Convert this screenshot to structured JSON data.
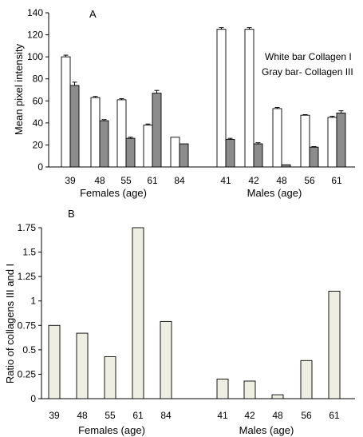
{
  "chart_data": [
    {
      "panel_label": "A",
      "type": "bar",
      "ylabel": "Mean pixel intensity",
      "ylim": [
        0,
        140
      ],
      "yticks": [
        0,
        20,
        40,
        60,
        80,
        100,
        120,
        140
      ],
      "grid": false,
      "annotations": [
        "White bar Collagen I",
        "Gray bar- Collagen III"
      ],
      "groups": [
        {
          "label": "Females (age)",
          "categories": [
            "39",
            "48",
            "55",
            "61",
            "84"
          ]
        },
        {
          "label": "Males (age)",
          "categories": [
            "41",
            "42",
            "48",
            "56",
            "61"
          ]
        }
      ],
      "series": [
        {
          "values": [
            100,
            63,
            61,
            38,
            27,
            125,
            125,
            53,
            47,
            45
          ],
          "errors": [
            1.5,
            1,
            1,
            1,
            0,
            1.5,
            1.5,
            1,
            0.5,
            1
          ],
          "color": "#ffffff"
        },
        {
          "values": [
            74,
            42,
            26,
            67,
            21,
            25,
            21,
            2,
            18,
            49
          ],
          "errors": [
            3,
            1,
            1,
            2.5,
            0,
            1,
            1,
            0,
            0.5,
            2
          ],
          "color": "#8c8c8c"
        }
      ]
    },
    {
      "panel_label": "B",
      "type": "bar",
      "ylabel": "Ratio of collagens III and I",
      "ylim": [
        0,
        1.75
      ],
      "yticks": [
        "0",
        "0.25",
        "0.5",
        "0.75",
        "1",
        "1.25",
        "1.5",
        "1.75"
      ],
      "grid": false,
      "groups": [
        {
          "label": "Females (age)",
          "categories": [
            "39",
            "48",
            "55",
            "61",
            "84"
          ]
        },
        {
          "label": "Males (age)",
          "categories": [
            "41",
            "42",
            "48",
            "56",
            "61"
          ]
        }
      ],
      "series": [
        {
          "values": [
            0.75,
            0.67,
            0.43,
            1.75,
            0.79,
            0.2,
            0.18,
            0.04,
            0.39,
            1.1
          ],
          "color": "#eeeee2"
        }
      ]
    }
  ]
}
